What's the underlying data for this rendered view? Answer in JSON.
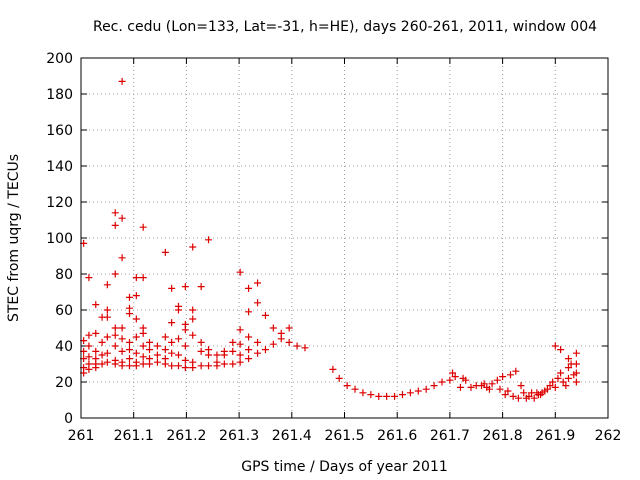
{
  "chart_data": {
    "type": "scatter",
    "title": "Rec. cedu (Lon=133, Lat=-31, h=HE), days 260-261, 2011, window 004",
    "xlabel": "GPS time / Days of year 2011",
    "ylabel": "STEC from uqrg / TECUs",
    "xlim": [
      261,
      262
    ],
    "ylim": [
      0,
      200
    ],
    "xticks": [
      261,
      261.1,
      261.2,
      261.3,
      261.4,
      261.5,
      261.6,
      261.7,
      261.8,
      261.9,
      262
    ],
    "xtick_labels": [
      "261",
      "261.1",
      "261.2",
      "261.3",
      "261.4",
      "261.5",
      "261.6",
      "261.7",
      "261.8",
      "261.9",
      "262"
    ],
    "yticks": [
      0,
      20,
      40,
      60,
      80,
      100,
      120,
      140,
      160,
      180,
      200
    ],
    "ytick_labels": [
      "0",
      "20",
      "40",
      "60",
      "80",
      "100",
      "120",
      "140",
      "160",
      "180",
      "200"
    ],
    "grid": true,
    "marker": "+",
    "color": "#dd0000",
    "points": [
      [
        261.005,
        97
      ],
      [
        261.005,
        43
      ],
      [
        261.005,
        37
      ],
      [
        261.005,
        33
      ],
      [
        261.005,
        28
      ],
      [
        261.005,
        25
      ],
      [
        261.015,
        78
      ],
      [
        261.015,
        46
      ],
      [
        261.015,
        40
      ],
      [
        261.015,
        34
      ],
      [
        261.015,
        30
      ],
      [
        261.015,
        27
      ],
      [
        261.028,
        63
      ],
      [
        261.028,
        47
      ],
      [
        261.028,
        37
      ],
      [
        261.028,
        33
      ],
      [
        261.028,
        30
      ],
      [
        261.028,
        28
      ],
      [
        261.04,
        56
      ],
      [
        261.04,
        42
      ],
      [
        261.04,
        35
      ],
      [
        261.04,
        30
      ],
      [
        261.05,
        74
      ],
      [
        261.05,
        60
      ],
      [
        261.05,
        56
      ],
      [
        261.05,
        45
      ],
      [
        261.05,
        36
      ],
      [
        261.05,
        31
      ],
      [
        261.065,
        114
      ],
      [
        261.065,
        107
      ],
      [
        261.065,
        80
      ],
      [
        261.065,
        50
      ],
      [
        261.065,
        46
      ],
      [
        261.065,
        40
      ],
      [
        261.065,
        32
      ],
      [
        261.065,
        30
      ],
      [
        261.078,
        187
      ],
      [
        261.078,
        111
      ],
      [
        261.078,
        89
      ],
      [
        261.078,
        50
      ],
      [
        261.078,
        44
      ],
      [
        261.078,
        37
      ],
      [
        261.078,
        31
      ],
      [
        261.078,
        29
      ],
      [
        261.092,
        67
      ],
      [
        261.092,
        61
      ],
      [
        261.092,
        58
      ],
      [
        261.092,
        42
      ],
      [
        261.092,
        38
      ],
      [
        261.092,
        33
      ],
      [
        261.092,
        29
      ],
      [
        261.105,
        78
      ],
      [
        261.105,
        68
      ],
      [
        261.105,
        55
      ],
      [
        261.105,
        45
      ],
      [
        261.105,
        36
      ],
      [
        261.105,
        31
      ],
      [
        261.105,
        29
      ],
      [
        261.118,
        106
      ],
      [
        261.118,
        78
      ],
      [
        261.118,
        50
      ],
      [
        261.118,
        47
      ],
      [
        261.118,
        40
      ],
      [
        261.118,
        34
      ],
      [
        261.118,
        30
      ],
      [
        261.13,
        42
      ],
      [
        261.13,
        38
      ],
      [
        261.13,
        33
      ],
      [
        261.13,
        30
      ],
      [
        261.145,
        40
      ],
      [
        261.145,
        35
      ],
      [
        261.145,
        31
      ],
      [
        261.16,
        92
      ],
      [
        261.16,
        45
      ],
      [
        261.16,
        38
      ],
      [
        261.16,
        33
      ],
      [
        261.16,
        30
      ],
      [
        261.172,
        72
      ],
      [
        261.172,
        53
      ],
      [
        261.172,
        42
      ],
      [
        261.172,
        36
      ],
      [
        261.172,
        29
      ],
      [
        261.185,
        62
      ],
      [
        261.185,
        60
      ],
      [
        261.185,
        44
      ],
      [
        261.185,
        35
      ],
      [
        261.185,
        29
      ],
      [
        261.198,
        73
      ],
      [
        261.198,
        52
      ],
      [
        261.198,
        49
      ],
      [
        261.198,
        40
      ],
      [
        261.198,
        32
      ],
      [
        261.198,
        28
      ],
      [
        261.212,
        95
      ],
      [
        261.212,
        60
      ],
      [
        261.212,
        55
      ],
      [
        261.212,
        46
      ],
      [
        261.212,
        31
      ],
      [
        261.212,
        28
      ],
      [
        261.228,
        73
      ],
      [
        261.228,
        42
      ],
      [
        261.228,
        37
      ],
      [
        261.228,
        29
      ],
      [
        261.242,
        99
      ],
      [
        261.242,
        38
      ],
      [
        261.242,
        35
      ],
      [
        261.242,
        29
      ],
      [
        261.258,
        35
      ],
      [
        261.258,
        31
      ],
      [
        261.258,
        29
      ],
      [
        261.272,
        37
      ],
      [
        261.272,
        35
      ],
      [
        261.272,
        30
      ],
      [
        261.288,
        42
      ],
      [
        261.288,
        37
      ],
      [
        261.288,
        30
      ],
      [
        261.302,
        81
      ],
      [
        261.302,
        49
      ],
      [
        261.302,
        41
      ],
      [
        261.302,
        35
      ],
      [
        261.302,
        31
      ],
      [
        261.318,
        72
      ],
      [
        261.318,
        59
      ],
      [
        261.318,
        45
      ],
      [
        261.318,
        38
      ],
      [
        261.318,
        33
      ],
      [
        261.335,
        75
      ],
      [
        261.335,
        64
      ],
      [
        261.335,
        42
      ],
      [
        261.335,
        36
      ],
      [
        261.35,
        57
      ],
      [
        261.35,
        38
      ],
      [
        261.365,
        50
      ],
      [
        261.365,
        41
      ],
      [
        261.38,
        47
      ],
      [
        261.38,
        44
      ],
      [
        261.395,
        50
      ],
      [
        261.395,
        42
      ],
      [
        261.41,
        40
      ],
      [
        261.425,
        39
      ],
      [
        261.478,
        27
      ],
      [
        261.49,
        22
      ],
      [
        261.505,
        18
      ],
      [
        261.52,
        16
      ],
      [
        261.535,
        14
      ],
      [
        261.55,
        13
      ],
      [
        261.565,
        12
      ],
      [
        261.58,
        12
      ],
      [
        261.595,
        12
      ],
      [
        261.61,
        13
      ],
      [
        261.625,
        14
      ],
      [
        261.64,
        15
      ],
      [
        261.655,
        16
      ],
      [
        261.67,
        18
      ],
      [
        261.685,
        20
      ],
      [
        261.7,
        21
      ],
      [
        261.705,
        25
      ],
      [
        261.71,
        23
      ],
      [
        261.72,
        17
      ],
      [
        261.725,
        22
      ],
      [
        261.73,
        21
      ],
      [
        261.74,
        17
      ],
      [
        261.75,
        18
      ],
      [
        261.76,
        18
      ],
      [
        261.765,
        19
      ],
      [
        261.77,
        17
      ],
      [
        261.775,
        16
      ],
      [
        261.78,
        19
      ],
      [
        261.79,
        21
      ],
      [
        261.795,
        16
      ],
      [
        261.8,
        23
      ],
      [
        261.805,
        13
      ],
      [
        261.81,
        15
      ],
      [
        261.815,
        24
      ],
      [
        261.82,
        12
      ],
      [
        261.825,
        26
      ],
      [
        261.83,
        11
      ],
      [
        261.835,
        18
      ],
      [
        261.84,
        14
      ],
      [
        261.845,
        11
      ],
      [
        261.85,
        12
      ],
      [
        261.855,
        14
      ],
      [
        261.86,
        11
      ],
      [
        261.865,
        14
      ],
      [
        261.868,
        13
      ],
      [
        261.872,
        13
      ],
      [
        261.875,
        14
      ],
      [
        261.88,
        15
      ],
      [
        261.885,
        16
      ],
      [
        261.89,
        18
      ],
      [
        261.895,
        20
      ],
      [
        261.9,
        40
      ],
      [
        261.9,
        17
      ],
      [
        261.905,
        22
      ],
      [
        261.91,
        38
      ],
      [
        261.91,
        25
      ],
      [
        261.915,
        20
      ],
      [
        261.92,
        18
      ],
      [
        261.925,
        33
      ],
      [
        261.925,
        28
      ],
      [
        261.925,
        22
      ],
      [
        261.93,
        30
      ],
      [
        261.935,
        24
      ],
      [
        261.94,
        36
      ],
      [
        261.94,
        30
      ],
      [
        261.94,
        25
      ],
      [
        261.94,
        20
      ]
    ]
  }
}
